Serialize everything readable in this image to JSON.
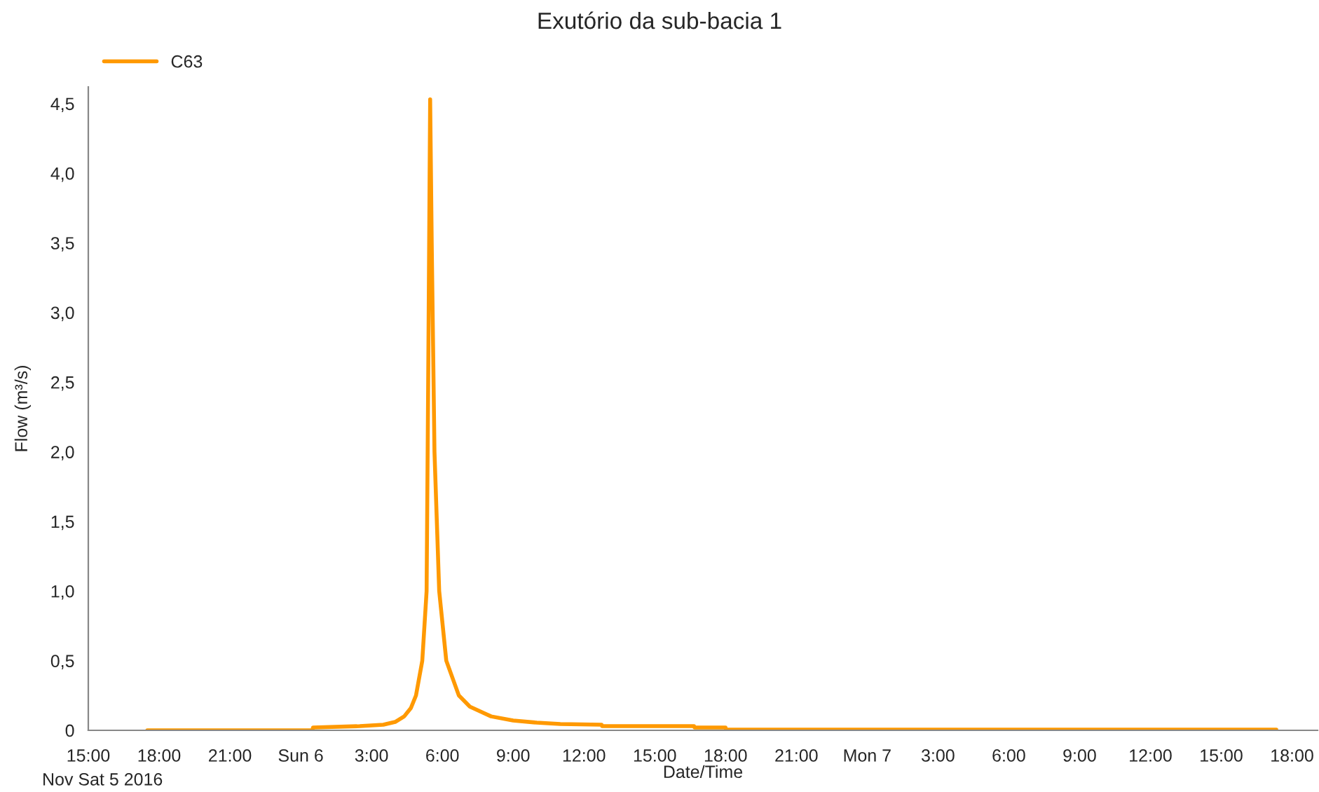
{
  "chart_data": {
    "type": "line",
    "title": "Exutório da sub-bacia 1",
    "xlabel": "Date/Time",
    "ylabel": "Flow (m³/s)",
    "annotations": [
      "Nov Sat 5 2016"
    ],
    "series": [
      {
        "name": "C63",
        "color": "#ff9900",
        "x": [
          "2016-11-05T17:30",
          "2016-11-06T00:30",
          "2016-11-06T00:31",
          "2016-11-06T02:30",
          "2016-11-06T03:30",
          "2016-11-06T04:00",
          "2016-11-06T04:23",
          "2016-11-06T04:40",
          "2016-11-06T04:53",
          "2016-11-06T05:09",
          "2016-11-06T05:20",
          "2016-11-06T05:24",
          "2016-11-06T05:29",
          "2016-11-06T05:33",
          "2016-11-06T05:40",
          "2016-11-06T05:52",
          "2016-11-06T06:10",
          "2016-11-06T06:42",
          "2016-11-06T07:10",
          "2016-11-06T08:04",
          "2016-11-06T09:00",
          "2016-11-06T10:00",
          "2016-11-06T11:00",
          "2016-11-06T12:45",
          "2016-11-06T12:46",
          "2016-11-06T16:40",
          "2016-11-06T16:41",
          "2016-11-06T18:00",
          "2016-11-06T18:01",
          "2016-11-07T17:20"
        ],
        "values": [
          0.0,
          0.0,
          0.02,
          0.03,
          0.04,
          0.06,
          0.1,
          0.16,
          0.25,
          0.5,
          1.0,
          2.5,
          4.53,
          3.5,
          2.0,
          1.0,
          0.5,
          0.25,
          0.17,
          0.1,
          0.07,
          0.055,
          0.045,
          0.04,
          0.03,
          0.03,
          0.02,
          0.02,
          0.005,
          0.005
        ]
      }
    ],
    "xlim": [
      "2016-11-05T15:00",
      "2016-11-07T19:05"
    ],
    "xticks": [
      {
        "value": "2016-11-05T15:00",
        "label": "15:00"
      },
      {
        "value": "2016-11-05T18:00",
        "label": "18:00"
      },
      {
        "value": "2016-11-05T21:00",
        "label": "21:00"
      },
      {
        "value": "2016-11-06T00:00",
        "label": "Sun 6"
      },
      {
        "value": "2016-11-06T03:00",
        "label": "3:00"
      },
      {
        "value": "2016-11-06T06:00",
        "label": "6:00"
      },
      {
        "value": "2016-11-06T09:00",
        "label": "9:00"
      },
      {
        "value": "2016-11-06T12:00",
        "label": "12:00"
      },
      {
        "value": "2016-11-06T15:00",
        "label": "15:00"
      },
      {
        "value": "2016-11-06T18:00",
        "label": "18:00"
      },
      {
        "value": "2016-11-06T21:00",
        "label": "21:00"
      },
      {
        "value": "2016-11-07T00:00",
        "label": "Mon 7"
      },
      {
        "value": "2016-11-07T03:00",
        "label": "3:00"
      },
      {
        "value": "2016-11-07T06:00",
        "label": "6:00"
      },
      {
        "value": "2016-11-07T09:00",
        "label": "9:00"
      },
      {
        "value": "2016-11-07T12:00",
        "label": "12:00"
      },
      {
        "value": "2016-11-07T15:00",
        "label": "15:00"
      },
      {
        "value": "2016-11-07T18:00",
        "label": "18:00"
      }
    ],
    "ylim": [
      0,
      4.62
    ],
    "yticks": [
      0,
      {
        "value": 0.5,
        "label": "0,5"
      },
      {
        "value": 1.0,
        "label": "1,0"
      },
      {
        "value": 1.5,
        "label": "1,5"
      },
      {
        "value": 2.0,
        "label": "2,0"
      },
      {
        "value": 2.5,
        "label": "2,5"
      },
      {
        "value": 3.0,
        "label": "3,0"
      },
      {
        "value": 3.5,
        "label": "3,5"
      },
      {
        "value": 4.0,
        "label": "4,0"
      },
      {
        "value": 4.5,
        "label": "4,5"
      }
    ],
    "grid": false,
    "legend": "top left",
    "marker": "none",
    "line_style": "solid"
  }
}
